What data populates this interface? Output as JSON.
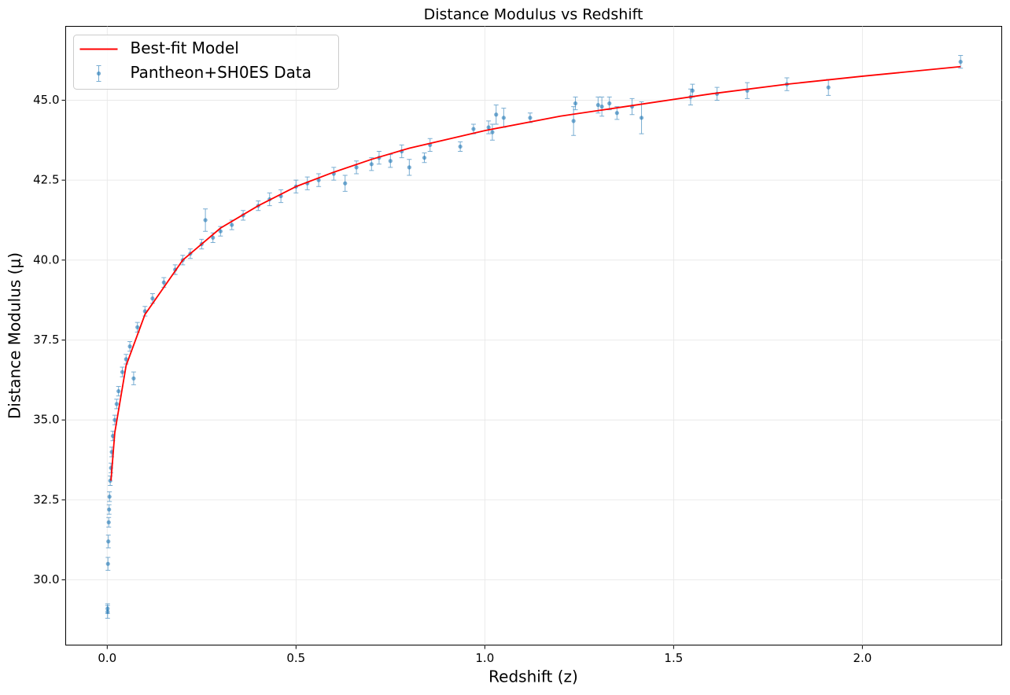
{
  "chart_data": {
    "type": "scatter",
    "title": "Distance Modulus vs Redshift",
    "xlabel": "Redshift (z)",
    "ylabel": "Distance Modulus (μ)",
    "xlim": [
      -0.11,
      2.369
    ],
    "ylim": [
      27.96,
      47.31
    ],
    "xticks": [
      {
        "value": 0,
        "label": "0.0"
      },
      0.5,
      {
        "value": 1,
        "label": "1.0"
      },
      1.5,
      {
        "value": 2,
        "label": "2.0"
      }
    ],
    "yticks": [
      {
        "value": 30,
        "label": "30.0"
      },
      32.5,
      {
        "value": 35,
        "label": "35.0"
      },
      37.5,
      {
        "value": 40,
        "label": "40.0"
      },
      42.5,
      {
        "value": 45,
        "label": "45.0"
      }
    ],
    "grid": true,
    "legend": "upper left",
    "series": [
      {
        "name": "Best-fit Model",
        "type": "line",
        "color": "#ff0000",
        "x": [
          0.01,
          0.02,
          0.05,
          0.1,
          0.2,
          0.3,
          0.4,
          0.5,
          0.6,
          0.7,
          0.8,
          1.0,
          1.2,
          1.4,
          1.6,
          1.8,
          2.0,
          2.26
        ],
        "values": [
          33.1,
          34.6,
          36.7,
          38.3,
          40.0,
          41.0,
          41.7,
          42.3,
          42.75,
          43.15,
          43.5,
          44.05,
          44.5,
          44.85,
          45.2,
          45.5,
          45.75,
          46.05
        ]
      },
      {
        "name": "Pantheon+SH0ES Data",
        "type": "errorbar",
        "color": "#1f77b4",
        "x": [
          0.001,
          0.001,
          0.002,
          0.003,
          0.004,
          0.005,
          0.006,
          0.008,
          0.01,
          0.012,
          0.015,
          0.02,
          0.025,
          0.03,
          0.04,
          0.05,
          0.06,
          0.07,
          0.08,
          0.1,
          0.12,
          0.15,
          0.18,
          0.2,
          0.22,
          0.25,
          0.26,
          0.28,
          0.3,
          0.33,
          0.36,
          0.4,
          0.43,
          0.46,
          0.5,
          0.53,
          0.56,
          0.6,
          0.63,
          0.66,
          0.7,
          0.72,
          0.75,
          0.78,
          0.8,
          0.84,
          0.855,
          0.935,
          0.97,
          1.01,
          1.02,
          1.03,
          1.05,
          1.12,
          1.235,
          1.24,
          1.3,
          1.31,
          1.33,
          1.35,
          1.39,
          1.415,
          1.55,
          1.545,
          1.615,
          1.695,
          1.8,
          1.91,
          2.26
        ],
        "values": [
          29.0,
          29.1,
          30.5,
          31.2,
          31.8,
          32.2,
          32.6,
          33.1,
          33.5,
          34.0,
          34.5,
          35.0,
          35.5,
          35.9,
          36.5,
          36.9,
          37.3,
          36.3,
          37.9,
          38.4,
          38.8,
          39.3,
          39.7,
          40.0,
          40.2,
          40.5,
          41.25,
          40.7,
          40.9,
          41.1,
          41.4,
          41.7,
          41.9,
          42.0,
          42.3,
          42.4,
          42.5,
          42.7,
          42.4,
          42.9,
          43.0,
          43.2,
          43.1,
          43.4,
          42.9,
          43.2,
          43.6,
          43.55,
          44.1,
          44.15,
          44.0,
          44.55,
          44.45,
          44.45,
          44.35,
          44.9,
          44.85,
          44.8,
          44.9,
          44.6,
          44.8,
          44.45,
          45.3,
          45.1,
          45.2,
          45.3,
          45.5,
          45.4,
          46.2
        ],
        "errors": [
          0.2,
          0.15,
          0.2,
          0.2,
          0.15,
          0.15,
          0.15,
          0.15,
          0.15,
          0.15,
          0.15,
          0.15,
          0.15,
          0.15,
          0.15,
          0.15,
          0.15,
          0.2,
          0.15,
          0.15,
          0.15,
          0.15,
          0.15,
          0.15,
          0.15,
          0.15,
          0.35,
          0.15,
          0.15,
          0.15,
          0.15,
          0.15,
          0.2,
          0.2,
          0.2,
          0.2,
          0.2,
          0.2,
          0.25,
          0.2,
          0.2,
          0.2,
          0.2,
          0.2,
          0.25,
          0.15,
          0.2,
          0.15,
          0.15,
          0.2,
          0.25,
          0.3,
          0.3,
          0.15,
          0.45,
          0.2,
          0.25,
          0.3,
          0.2,
          0.2,
          0.25,
          0.5,
          0.2,
          0.25,
          0.2,
          0.25,
          0.2,
          0.25,
          0.2
        ]
      }
    ]
  }
}
